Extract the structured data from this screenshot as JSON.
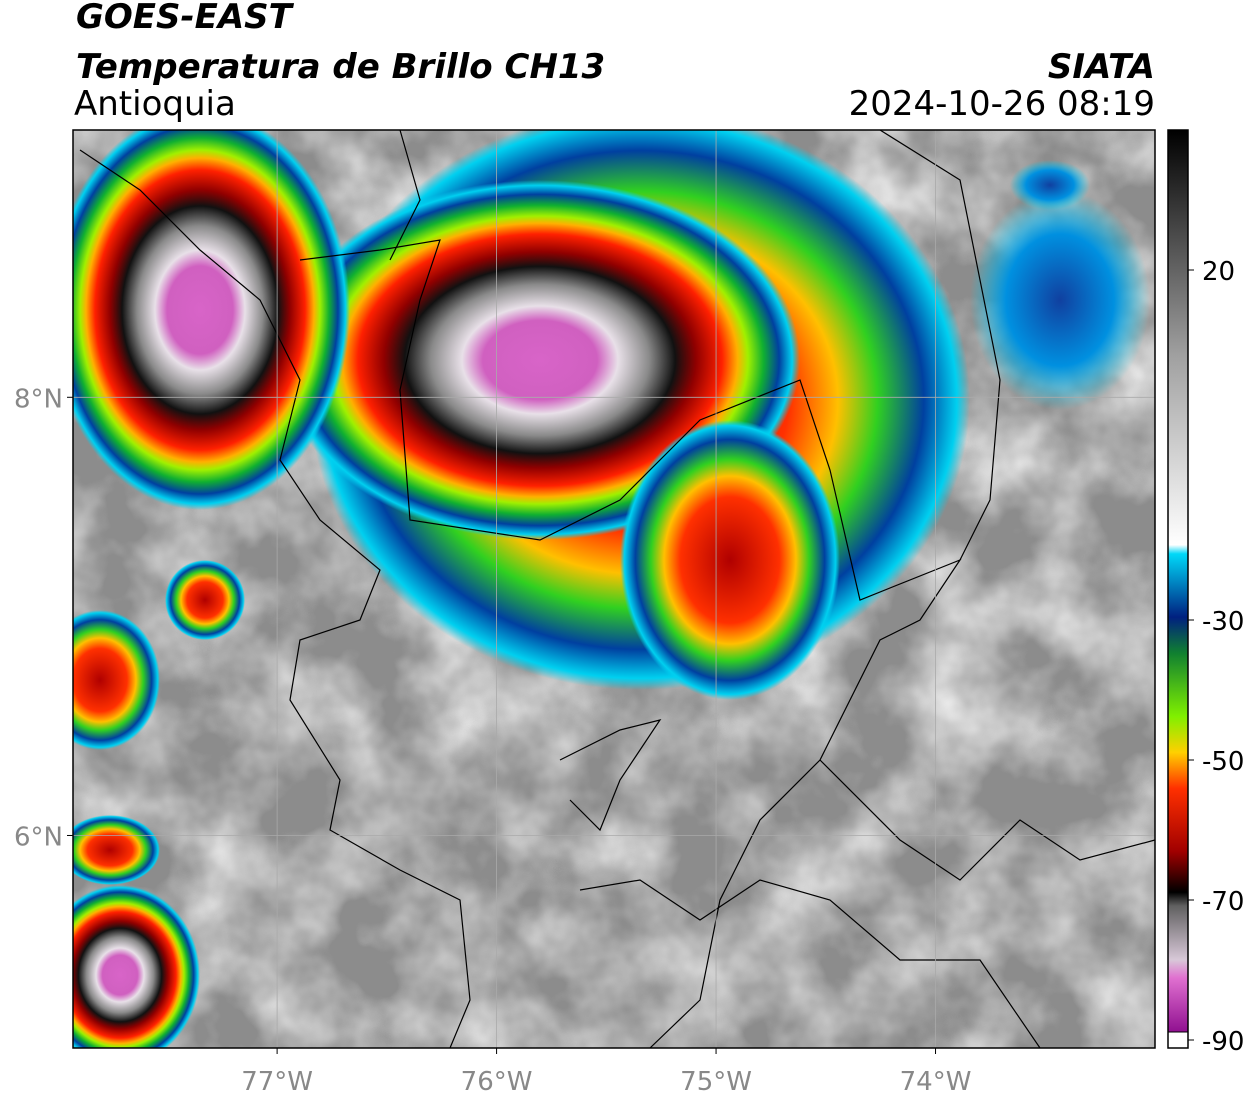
{
  "header": {
    "title": "GOES-EAST",
    "subtitle": "Temperatura de Brillo CH13",
    "region": "Antioquia",
    "source": "SIATA",
    "timestamp": "2024-10-26 08:19"
  },
  "map": {
    "xlim": [
      -77.93,
      -73.0
    ],
    "ylim": [
      5.03,
      9.22
    ],
    "xticks": [
      {
        "value": -77,
        "label": "77°W"
      },
      {
        "value": -76,
        "label": "76°W"
      },
      {
        "value": -75,
        "label": "75°W"
      },
      {
        "value": -74,
        "label": "74°W"
      }
    ],
    "yticks": [
      {
        "value": 8,
        "label": "8°N"
      },
      {
        "value": 6,
        "label": "6°N"
      }
    ]
  },
  "colorbar": {
    "lim": [
      -90,
      40
    ],
    "ticks": [
      20,
      -30,
      -50,
      -70,
      -90
    ]
  }
}
